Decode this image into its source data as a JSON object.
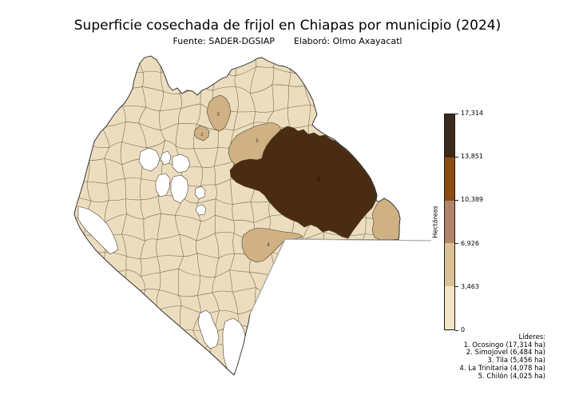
{
  "figure": {
    "title": "Superficie cosechada de frijol en Chiapas por municipio (2024)",
    "source": "Fuente: SADER-DGSIAP",
    "credit": "Elaboró: Olmo Axayacatl"
  },
  "chart_data": {
    "type": "choropleth",
    "region": "Chiapas (México), división municipal",
    "metric": "Superficie cosechada de frijol",
    "unit": "ha",
    "year": "2024",
    "colorbar": {
      "label": "Hectáreas",
      "min": 0,
      "max": 17314,
      "tick_labels": [
        "0",
        "3,463",
        "6,926",
        "10,389",
        "13,851",
        "17,314"
      ],
      "segment_colors": [
        "#f3e5c4",
        "#dbc093",
        "#b18569",
        "#8c4d12",
        "#3e2a1a"
      ]
    },
    "leaders_title": "Líderes:",
    "leaders": [
      {
        "rank": "1",
        "municipality": "Ocosingo",
        "value_ha": 17314,
        "label": "1. Ocosingo (17,314 ha)"
      },
      {
        "rank": "2",
        "municipality": "Simojovel",
        "value_ha": 6484,
        "label": "2. Simojovel (6,484 ha)"
      },
      {
        "rank": "3",
        "municipality": "Tila",
        "value_ha": 5456,
        "label": "3. Tila (5,456 ha)"
      },
      {
        "rank": "4",
        "municipality": "La Trinitaria",
        "value_ha": 4078,
        "label": "4. La Trinitaria (4,078 ha)"
      },
      {
        "rank": "5",
        "municipality": "Chilón",
        "value_ha": 4025,
        "label": "5. Chilón (4,025 ha)"
      }
    ],
    "map_colors": {
      "no_data": "#ffffff",
      "bin1_low": "#ecddbe",
      "bin2": "#d0b184",
      "bin5_high": "#4a2c12"
    }
  }
}
